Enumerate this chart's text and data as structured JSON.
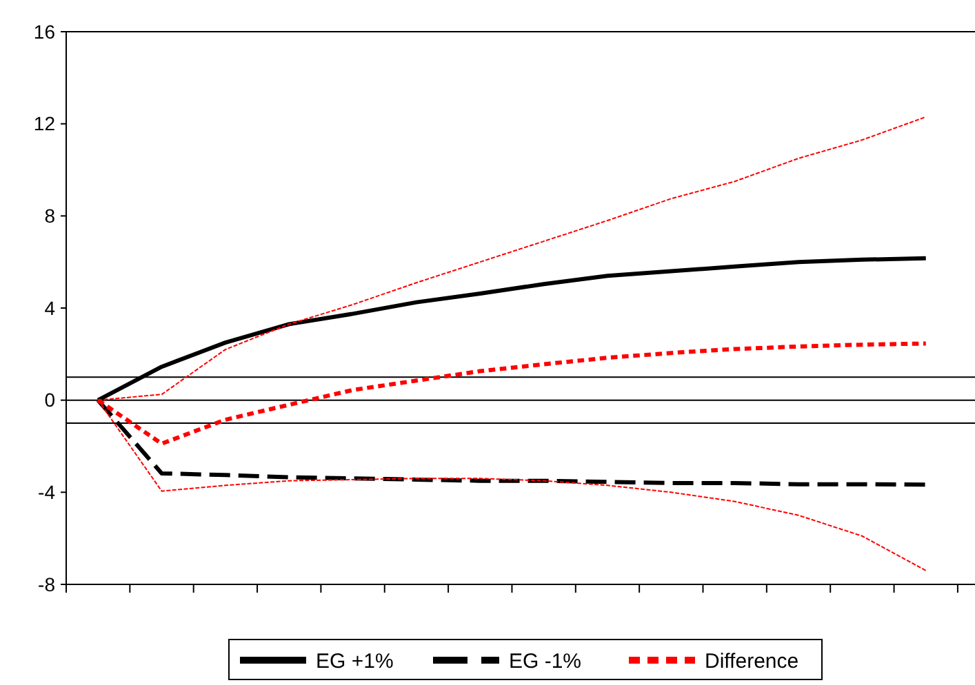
{
  "chart_data": {
    "type": "line",
    "categories": [
      null,
      null,
      null,
      null,
      null,
      null,
      null,
      null,
      null,
      null,
      null,
      null,
      null,
      null
    ],
    "series": [
      {
        "name": "EG +1%",
        "color": "#000000",
        "line_style": "solid",
        "values": [
          0,
          1.45,
          2.5,
          3.3,
          3.75,
          4.25,
          4.63,
          5.04,
          5.4,
          5.6,
          5.8,
          6.0,
          6.1,
          6.16
        ]
      },
      {
        "name": "EG -1%",
        "color": "#000000",
        "line_style": "dashed",
        "values": [
          0,
          -3.18,
          -3.25,
          -3.35,
          -3.4,
          -3.45,
          -3.5,
          -3.5,
          -3.55,
          -3.6,
          -3.6,
          -3.65,
          -3.65,
          -3.67
        ]
      },
      {
        "name": "Difference",
        "color": "#ff0000",
        "line_style": "dotted",
        "values": [
          0,
          -1.89,
          -0.85,
          -0.2,
          0.44,
          0.85,
          1.26,
          1.56,
          1.84,
          2.05,
          2.22,
          2.33,
          2.41,
          2.46
        ]
      },
      {
        "color": "#ff0000",
        "line_style": "dashed",
        "values": [
          0,
          -3.95,
          -3.7,
          -3.5,
          -3.45,
          -3.4,
          -3.4,
          -3.5,
          -3.7,
          -4.0,
          -4.4,
          -5.0,
          -5.9,
          -7.4
        ]
      },
      {
        "color": "#ff0000",
        "line_style": "dashed",
        "values": [
          0,
          0.25,
          2.2,
          3.3,
          4.15,
          5.1,
          6.0,
          6.9,
          7.8,
          8.75,
          9.5,
          10.5,
          11.3,
          12.3
        ]
      }
    ],
    "ylim": [
      -8,
      16
    ],
    "yticks": [
      -8,
      -4,
      0,
      4,
      8,
      12,
      16
    ],
    "grid": false,
    "legend": "bottom",
    "tick_labels": "y",
    "ref_lines": [
      {
        "axis": "y",
        "value": 1,
        "color": "#000000"
      },
      {
        "axis": "y",
        "value": 0,
        "color": "#000000"
      },
      {
        "axis": "y",
        "value": -1,
        "color": "#000000"
      }
    ]
  }
}
